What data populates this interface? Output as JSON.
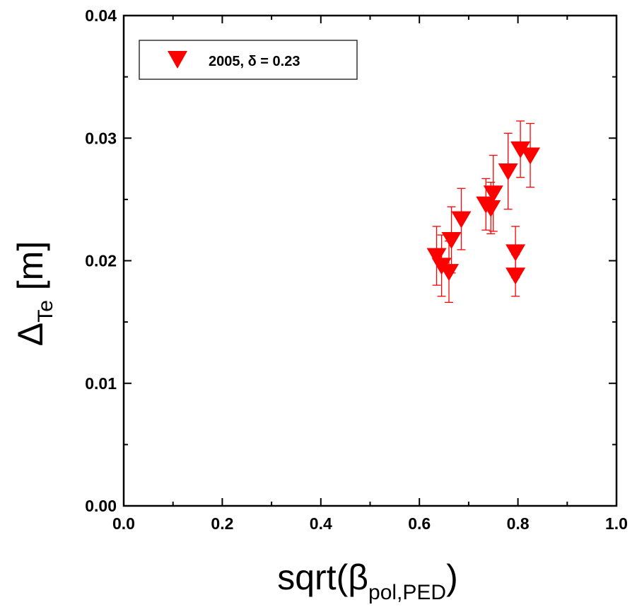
{
  "chart_data": {
    "type": "scatter",
    "xlim": [
      0.0,
      1.0
    ],
    "ylim": [
      0.0,
      0.04
    ],
    "x_ticks": [
      "0.0",
      "0.2",
      "0.4",
      "0.6",
      "0.8",
      "1.0"
    ],
    "y_ticks": [
      "0.00",
      "0.01",
      "0.02",
      "0.03",
      "0.04"
    ],
    "xlabel": {
      "main": "sqrt(β",
      "sub": "pol,PED",
      "close": ")"
    },
    "ylabel": {
      "main": "Δ",
      "sub": "Te",
      "rest": " [m]"
    },
    "legend": {
      "label": "2005, δ = 0.23",
      "position": "top-left"
    },
    "series": [
      {
        "name": "2005, δ = 0.23",
        "color": "#ff0000",
        "marker": "triangle-down",
        "points": [
          {
            "x": 0.635,
            "y": 0.0204,
            "err": 0.0024
          },
          {
            "x": 0.645,
            "y": 0.0196,
            "err": 0.0025
          },
          {
            "x": 0.66,
            "y": 0.0191,
            "err": 0.0025
          },
          {
            "x": 0.665,
            "y": 0.0217,
            "err": 0.0027
          },
          {
            "x": 0.685,
            "y": 0.0234,
            "err": 0.0025
          },
          {
            "x": 0.735,
            "y": 0.0246,
            "err": 0.0021
          },
          {
            "x": 0.745,
            "y": 0.0243,
            "err": 0.0021
          },
          {
            "x": 0.75,
            "y": 0.0255,
            "err": 0.0031
          },
          {
            "x": 0.78,
            "y": 0.0273,
            "err": 0.0031
          },
          {
            "x": 0.795,
            "y": 0.0207,
            "err": 0.0021
          },
          {
            "x": 0.795,
            "y": 0.0188,
            "err": 0.0017
          },
          {
            "x": 0.805,
            "y": 0.0291,
            "err": 0.0023
          },
          {
            "x": 0.825,
            "y": 0.0286,
            "err": 0.0026
          }
        ]
      }
    ]
  }
}
